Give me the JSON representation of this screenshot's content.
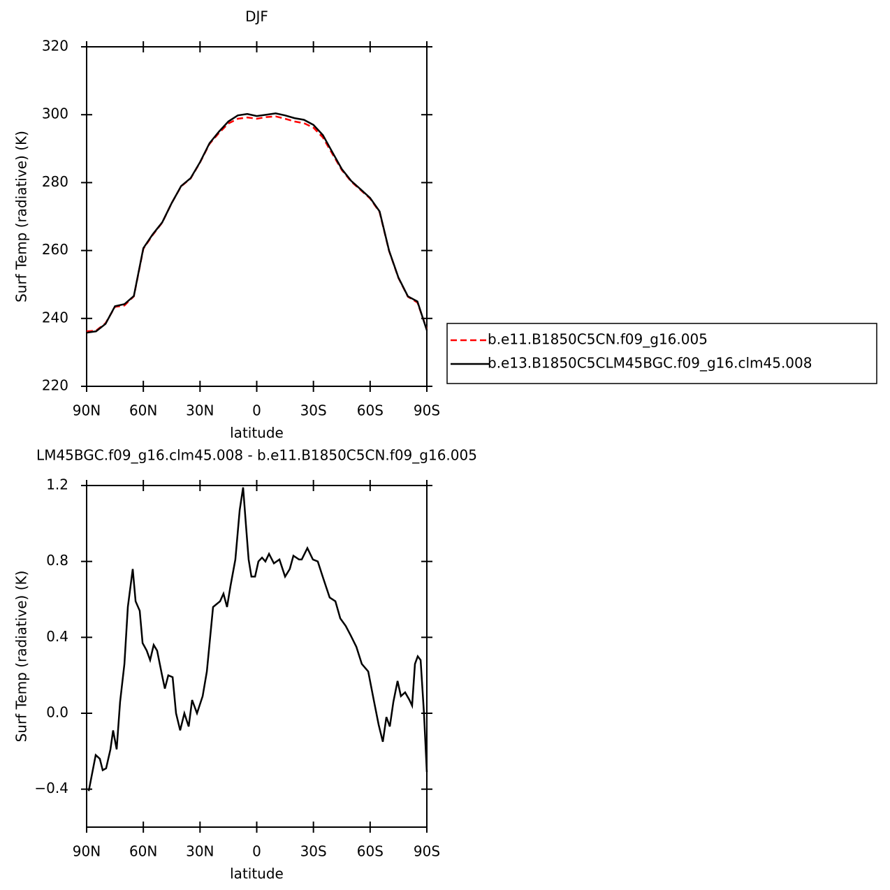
{
  "chart_data": [
    {
      "type": "line",
      "title": "DJF",
      "xlabel": "latitude",
      "ylabel": "Surf Temp (radiative) (K)",
      "xlim": [
        90,
        -90
      ],
      "xticks": [
        {
          "value": 90,
          "label": "90N"
        },
        {
          "value": 60,
          "label": "60N"
        },
        {
          "value": 30,
          "label": "30N"
        },
        0,
        {
          "value": -30,
          "label": "30S"
        },
        {
          "value": -60,
          "label": "60S"
        },
        {
          "value": -90,
          "label": "90S"
        }
      ],
      "ylim": [
        220,
        320
      ],
      "yticks": [
        220,
        240,
        260,
        280,
        300,
        320
      ],
      "legend": "right",
      "x": [
        90,
        85,
        80,
        75,
        70,
        65,
        60,
        55,
        50,
        45,
        40,
        35,
        30,
        25,
        20,
        15,
        10,
        5,
        0,
        -5,
        -10,
        -15,
        -20,
        -25,
        -30,
        -35,
        -40,
        -45,
        -50,
        -55,
        -60,
        -65,
        -70,
        -75,
        -80,
        -85,
        -90
      ],
      "series": [
        {
          "name": "b.e11.B1850C5CN.f09_g16.005",
          "color": "#ff0000",
          "line_style": "dashed",
          "values": [
            236.2,
            236.4,
            238.6,
            243.4,
            243.8,
            246.5,
            260.5,
            264.6,
            268.2,
            274,
            278.9,
            281.2,
            285.9,
            291.4,
            294.6,
            297.4,
            298.8,
            299.2,
            298.8,
            299.3,
            299.5,
            298.8,
            298,
            297.5,
            296.2,
            293.3,
            288.5,
            283.7,
            280.3,
            277.8,
            275.3,
            271.3,
            259.9,
            251.9,
            246.4,
            244.7,
            236.8
          ]
        },
        {
          "name": "b.e13.B1850C5CLM45BGC.f09_g16.clm45.008",
          "color": "#000000",
          "line_style": "solid",
          "values": [
            235.8,
            236.2,
            238.4,
            243.6,
            244.2,
            246.6,
            260.7,
            264.8,
            268.3,
            274,
            279,
            281.3,
            286,
            291.6,
            295,
            298,
            299.8,
            300.2,
            299.6,
            300,
            300.4,
            299.8,
            299,
            298.5,
            297,
            294,
            289,
            284,
            280.5,
            278,
            275.5,
            271.5,
            260,
            252,
            246.5,
            245,
            236.5
          ]
        }
      ]
    },
    {
      "type": "line",
      "title": "LM45BGC.f09_g16.clm45.008 - b.e11.B1850C5CN.f09_g16.005",
      "xlabel": "latitude",
      "ylabel": "Surf Temp (radiative) (K)",
      "xlim": [
        90,
        -90
      ],
      "xticks": [
        {
          "value": 90,
          "label": "90N"
        },
        {
          "value": 60,
          "label": "60N"
        },
        {
          "value": 30,
          "label": "30N"
        },
        0,
        {
          "value": -30,
          "label": "30S"
        },
        {
          "value": -60,
          "label": "60S"
        },
        {
          "value": -90,
          "label": "90S"
        }
      ],
      "ylim": [
        -0.6,
        1.2
      ],
      "yticks": [
        {
          "value": -0.4,
          "label": "−0.4"
        },
        {
          "value": 0,
          "label": "0.0"
        },
        0.4,
        0.8,
        1.2
      ],
      "x": [
        88.9,
        85.2,
        83,
        81.5,
        79.7,
        77.4,
        76,
        74.1,
        72.3,
        70,
        68.2,
        65.6,
        64.1,
        61.9,
        60.4,
        58.2,
        56.4,
        54.5,
        52.7,
        50.1,
        48.6,
        46.8,
        44.5,
        42.7,
        40.5,
        38.3,
        36,
        34.2,
        31.6,
        28.6,
        26.4,
        23.1,
        19.4,
        17.6,
        15.7,
        13.9,
        11.3,
        9,
        7.2,
        5.7,
        4.3,
        2.8,
        0.9,
        -0.9,
        -2.8,
        -4.6,
        -6.5,
        -9.1,
        -12,
        -15,
        -17.5,
        -19.4,
        -22.4,
        -23.8,
        -26.8,
        -29.7,
        -32.3,
        -34.9,
        -38.6,
        -41.6,
        -44.2,
        -47.1,
        -49.7,
        -52.7,
        -55.6,
        -59,
        -61.9,
        -64.5,
        -66.7,
        -68.6,
        -70.4,
        -72.3,
        -74.5,
        -76.3,
        -78.5,
        -80.8,
        -82.2,
        -83.7,
        -85.2,
        -86.7,
        -88.5,
        -90
      ],
      "series": [
        {
          "color": "#000000",
          "line_style": "solid",
          "values": [
            -0.41,
            -0.22,
            -0.24,
            -0.3,
            -0.29,
            -0.19,
            -0.09,
            -0.19,
            0.06,
            0.26,
            0.56,
            0.76,
            0.59,
            0.54,
            0.37,
            0.33,
            0.28,
            0.36,
            0.33,
            0.2,
            0.13,
            0.2,
            0.19,
            0,
            -0.09,
            0,
            -0.07,
            0.07,
            0,
            0.09,
            0.22,
            0.56,
            0.59,
            0.63,
            0.56,
            0.67,
            0.81,
            1.07,
            1.19,
            0.99,
            0.81,
            0.72,
            0.72,
            0.8,
            0.82,
            0.8,
            0.84,
            0.79,
            0.81,
            0.72,
            0.76,
            0.83,
            0.81,
            0.81,
            0.87,
            0.81,
            0.8,
            0.72,
            0.61,
            0.59,
            0.5,
            0.46,
            0.41,
            0.35,
            0.26,
            0.22,
            0.07,
            -0.06,
            -0.15,
            -0.02,
            -0.07,
            0.06,
            0.17,
            0.09,
            0.11,
            0.07,
            0.04,
            0.26,
            0.3,
            0.28,
            0,
            -0.31
          ]
        }
      ]
    }
  ]
}
